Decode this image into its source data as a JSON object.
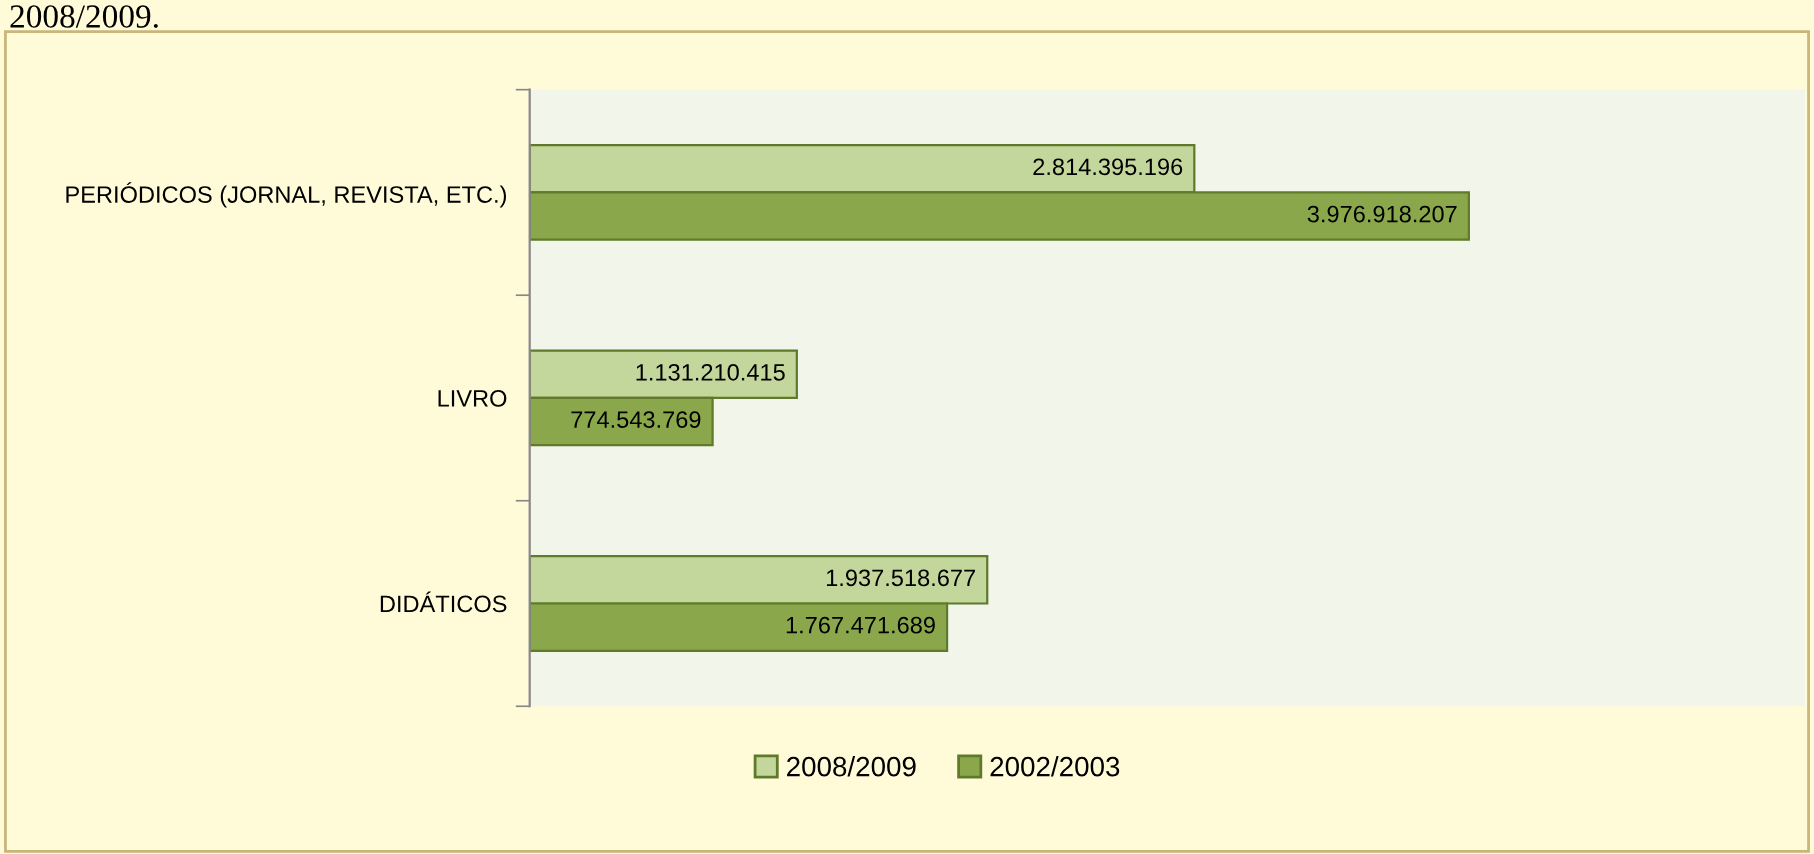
{
  "chart_data": {
    "type": "bar",
    "orientation": "horizontal",
    "categories": [
      "PERIÓDICOS (JORNAL, REVISTA, ETC.)",
      "LIVRO",
      "DIDÁTICOS"
    ],
    "series": [
      {
        "name": "2008/2009",
        "color": "#c3d69b",
        "values": [
          2814395196,
          1131210415,
          1937518677
        ],
        "value_labels": [
          "2.814.395.196",
          "1.131.210.415",
          "1.937.518.677"
        ]
      },
      {
        "name": "2002/2003",
        "color": "#8aa84b",
        "values": [
          3976918207,
          774543769,
          1767471689
        ],
        "value_labels": [
          "3.976.918.207",
          "774.543.769",
          "1.767.471.689"
        ]
      }
    ],
    "xlim": [
      0,
      5400000000
    ],
    "legend": "bottom",
    "annotations": [
      "2008/2009."
    ]
  }
}
